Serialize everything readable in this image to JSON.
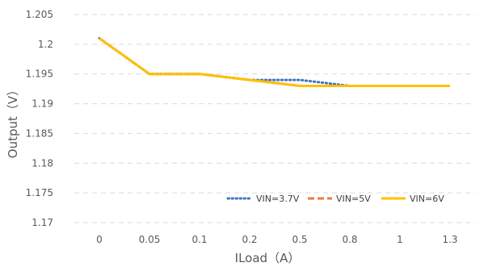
{
  "chart_data": {
    "type": "line",
    "categories": [
      "0",
      "0.05",
      "0.1",
      "0.2",
      "0.5",
      "0.8",
      "1",
      "1.3"
    ],
    "series": [
      {
        "name": "VIN=3.7V",
        "values": [
          1.201,
          1.195,
          1.195,
          1.194,
          1.194,
          1.193,
          1.193,
          1.193
        ],
        "color": "#4472C4",
        "style": "dotted"
      },
      {
        "name": "VIN=5V",
        "values": [
          1.201,
          1.195,
          1.195,
          1.194,
          1.193,
          1.193,
          1.193,
          1.193
        ],
        "color": "#ED7D31",
        "style": "dashed"
      },
      {
        "name": "VIN=6V",
        "values": [
          1.201,
          1.195,
          1.195,
          1.194,
          1.193,
          1.193,
          1.193,
          1.193
        ],
        "color": "#FFC000",
        "style": "solid"
      }
    ],
    "ylim": [
      1.17,
      1.205
    ],
    "yticks": [
      "1.17",
      "1.175",
      "1.18",
      "1.185",
      "1.19",
      "1.195",
      "1.2",
      "1.205"
    ],
    "xlabel": "ILoad（A）",
    "ylabel": "Output（V）",
    "grid": true,
    "legend_position": "bottom-right"
  }
}
